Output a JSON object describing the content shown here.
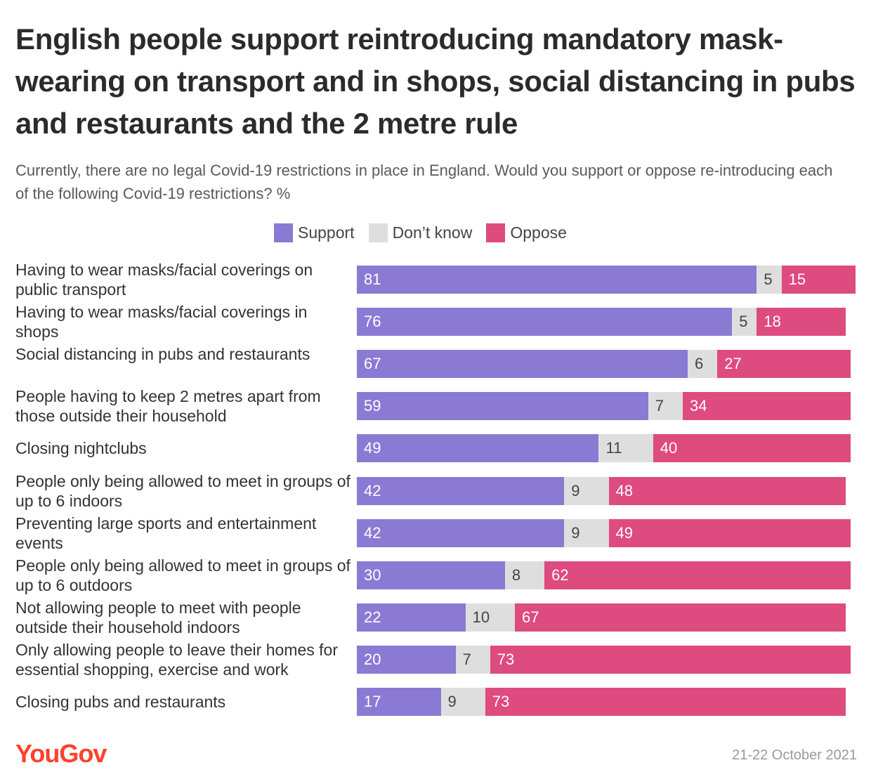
{
  "title": "English people support reintroducing mandatory mask-wearing on transport and in shops, social distancing in pubs and restaurants and the 2 metre rule",
  "subtitle": "Currently, there are no legal Covid-19 restrictions in place in England. Would you support or oppose re-introducing each of the following Covid-19 restrictions? %",
  "legend": [
    {
      "label": "Support",
      "color": "#8a7ad4"
    },
    {
      "label": "Don’t know",
      "color": "#dedede"
    },
    {
      "label": "Oppose",
      "color": "#de4b7e"
    }
  ],
  "footer": {
    "logo": "YouGov",
    "date": "21-22 October 2021"
  },
  "chart_data": {
    "type": "bar",
    "orientation": "horizontal",
    "stacked": true,
    "categories": [
      "Having to wear masks/facial coverings on public transport",
      "Having to wear masks/facial coverings in shops",
      "Social distancing in pubs and restaurants",
      "People having to keep 2 metres apart from those outside their household",
      "Closing nightclubs",
      "People only being allowed to meet in groups of up to 6 indoors",
      "Preventing large sports and entertainment events",
      "People only being allowed to meet in groups of up to 6 outdoors",
      "Not allowing people to meet with people outside their household indoors",
      "Only allowing people to leave their homes for essential shopping, exercise and work",
      "Closing pubs and restaurants"
    ],
    "series": [
      {
        "name": "Support",
        "color": "#8a7ad4",
        "values": [
          81,
          76,
          67,
          59,
          49,
          42,
          42,
          30,
          22,
          20,
          17
        ]
      },
      {
        "name": "Don’t know",
        "color": "#dedede",
        "values": [
          5,
          5,
          6,
          7,
          11,
          9,
          9,
          8,
          10,
          7,
          9
        ]
      },
      {
        "name": "Oppose",
        "color": "#de4b7e",
        "values": [
          15,
          18,
          27,
          34,
          40,
          48,
          49,
          62,
          67,
          73,
          73
        ]
      }
    ],
    "legend_position": "top"
  }
}
